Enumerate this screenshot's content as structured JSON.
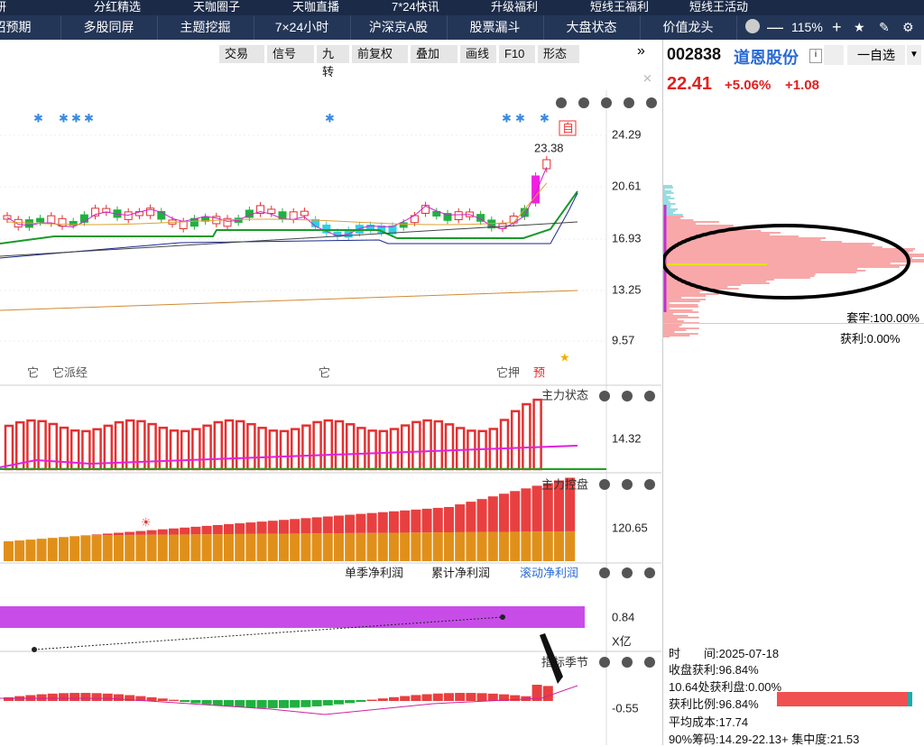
{
  "top_nav": [
    "研",
    "分红精选",
    "天咖圈子",
    "天咖直播",
    "7*24快讯",
    "升级福利",
    "短线王福利",
    "短线王活动"
  ],
  "nav": [
    "招预期",
    "多股同屏",
    "主题挖掘",
    "7×24小时",
    "沪深京A股",
    "股票漏斗",
    "大盘状态",
    "价值龙头"
  ],
  "zoom": "115%",
  "toolbar": [
    "交易",
    "信号",
    "九转",
    "前复权",
    "叠加",
    "画线",
    "F10",
    "形态"
  ],
  "stock": {
    "code": "002838",
    "name": "道恩股份",
    "price": "22.41",
    "change_pct": "+5.06%",
    "change": "+1.08",
    "watch": "一自选"
  },
  "main_chart": {
    "axis_labels": [
      "24.29",
      "20.61",
      "16.93",
      "13.25",
      "9.57"
    ],
    "high_label": "23.38",
    "self_tag": "自",
    "events": [
      "它",
      "它派经",
      "它",
      "它押",
      "预"
    ]
  },
  "panel_status": {
    "title": "主力状态",
    "label": "14.32"
  },
  "panel_control": {
    "title": "主力控盘",
    "label": "120.65"
  },
  "panel_profit": {
    "tabs": [
      "单季净利润",
      "累计净利润",
      "滚动净利润"
    ],
    "label": "0.84",
    "unit": "X亿"
  },
  "panel_season": {
    "title": "指标季节",
    "label": "-0.55"
  },
  "chips": {
    "trapped": "套牢:100.00%",
    "profit": "获利:0.00%",
    "info": [
      "时　　间:2025-07-18",
      "收盘获利:96.84%",
      "10.64处获利盘:0.00%",
      "获利比例:96.84%",
      "平均成本:17.74",
      "90%筹码:14.29-22.13+ 集中度:21.53"
    ]
  }
}
